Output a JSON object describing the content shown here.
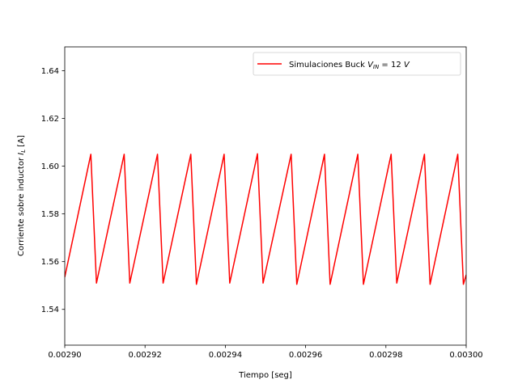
{
  "chart_data": {
    "type": "line",
    "title": "",
    "xlabel": "Tiempo [seg]",
    "ylabel": "Corriente sobre inductor I_L [A]",
    "ylabel_main": "Corriente sobre inductor ",
    "ylabel_italic": "I",
    "ylabel_sub": "L",
    "ylabel_unit": " [A]",
    "xlim": [
      0.0029,
      0.003
    ],
    "ylim": [
      1.525,
      1.65
    ],
    "xticks": [
      "0.00290",
      "0.00292",
      "0.00294",
      "0.00296",
      "0.00298",
      "0.00300"
    ],
    "xtick_values": [
      0.0029,
      0.00292,
      0.00294,
      0.00296,
      0.00298,
      0.003
    ],
    "yticks": [
      "1.54",
      "1.56",
      "1.58",
      "1.60",
      "1.62",
      "1.64"
    ],
    "ytick_values": [
      1.54,
      1.56,
      1.58,
      1.6,
      1.62,
      1.64
    ],
    "grid": false,
    "legend_position": "upper right",
    "legend": {
      "prefix": "Simulaciones Buck ",
      "var": "V",
      "sub": "IN",
      "suffix": " = 12 ",
      "unit": "V"
    },
    "series": [
      {
        "name": "Simulaciones Buck V_IN = 12 V",
        "color": "#ff0000",
        "x": [
          0.0029,
          0.0029065,
          0.0029079,
          0.0029148,
          0.0029162,
          0.0029231,
          0.0029245,
          0.0029314,
          0.0029328,
          0.0029397,
          0.0029411,
          0.002948,
          0.0029494,
          0.0029564,
          0.0029578,
          0.0029647,
          0.0029661,
          0.002973,
          0.0029744,
          0.0029813,
          0.0029827,
          0.0029896,
          0.002991,
          0.0029979,
          0.0029993,
          0.003
        ],
        "y": [
          1.5535,
          1.605,
          1.551,
          1.605,
          1.551,
          1.605,
          1.551,
          1.605,
          1.5505,
          1.605,
          1.551,
          1.6052,
          1.551,
          1.605,
          1.5505,
          1.605,
          1.5505,
          1.605,
          1.5505,
          1.605,
          1.551,
          1.605,
          1.5505,
          1.605,
          1.5505,
          1.5545
        ]
      }
    ]
  }
}
